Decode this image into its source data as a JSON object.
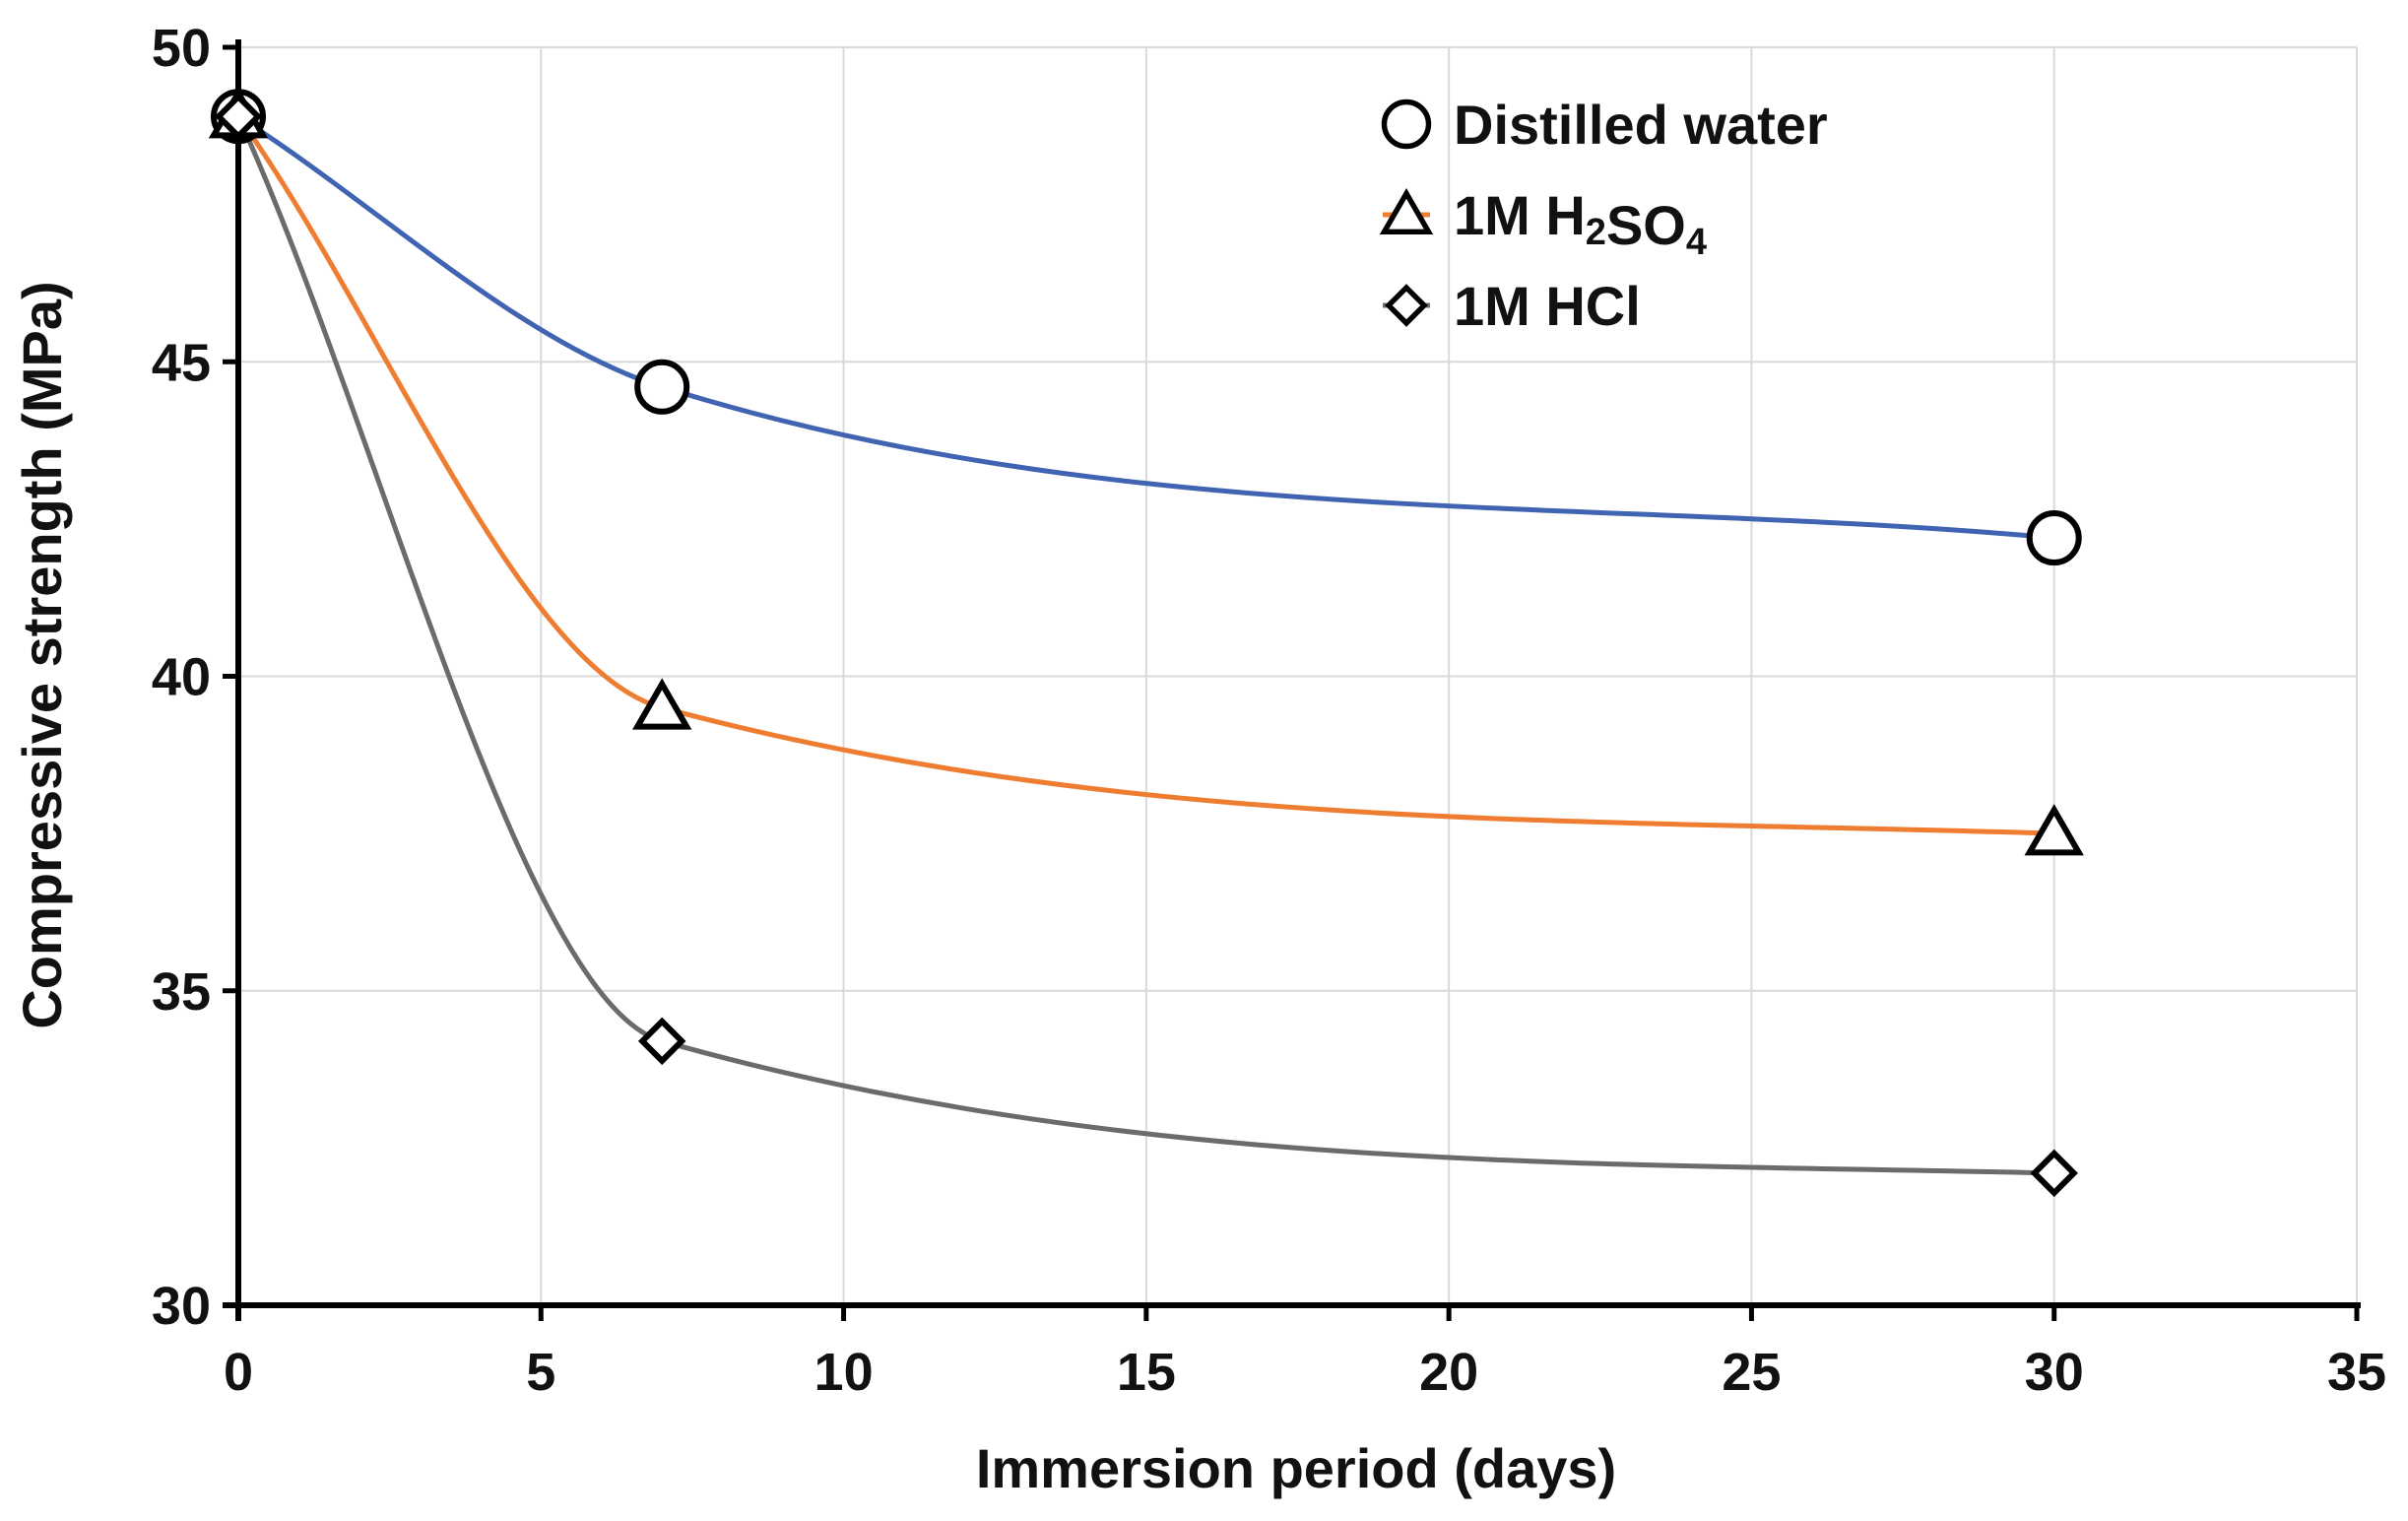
{
  "chart_data": {
    "type": "line",
    "title": "",
    "xlabel": "Immersion period (days)",
    "ylabel": "Compressive strength (MPa)",
    "xlim": [
      0,
      35
    ],
    "ylim": [
      30,
      50
    ],
    "x_ticks": [
      0,
      5,
      10,
      15,
      20,
      25,
      30,
      35
    ],
    "y_ticks": [
      30,
      35,
      40,
      45,
      50
    ],
    "grid": true,
    "smooth_lines": true,
    "legend_position": "top-right",
    "series": [
      {
        "name": "Distilled water",
        "legend_parts": [
          {
            "t": "Distilled water",
            "sub": false
          }
        ],
        "marker": "circle",
        "color": "#4063b2",
        "x": [
          0,
          7,
          30
        ],
        "y": [
          48.9,
          44.6,
          42.2
        ]
      },
      {
        "name": "1M H2SO4",
        "legend_parts": [
          {
            "t": "1M H",
            "sub": false
          },
          {
            "t": "2",
            "sub": true
          },
          {
            "t": "SO",
            "sub": false
          },
          {
            "t": "4",
            "sub": true
          }
        ],
        "marker": "triangle",
        "color": "#ee7d31",
        "x": [
          0,
          7,
          30
        ],
        "y": [
          48.9,
          39.5,
          37.5
        ]
      },
      {
        "name": "1M HCl",
        "legend_parts": [
          {
            "t": "1M HCl",
            "sub": false
          }
        ],
        "marker": "diamond",
        "color": "#6b6b6b",
        "x": [
          0,
          7,
          30
        ],
        "y": [
          48.9,
          34.2,
          32.1
        ]
      }
    ]
  }
}
